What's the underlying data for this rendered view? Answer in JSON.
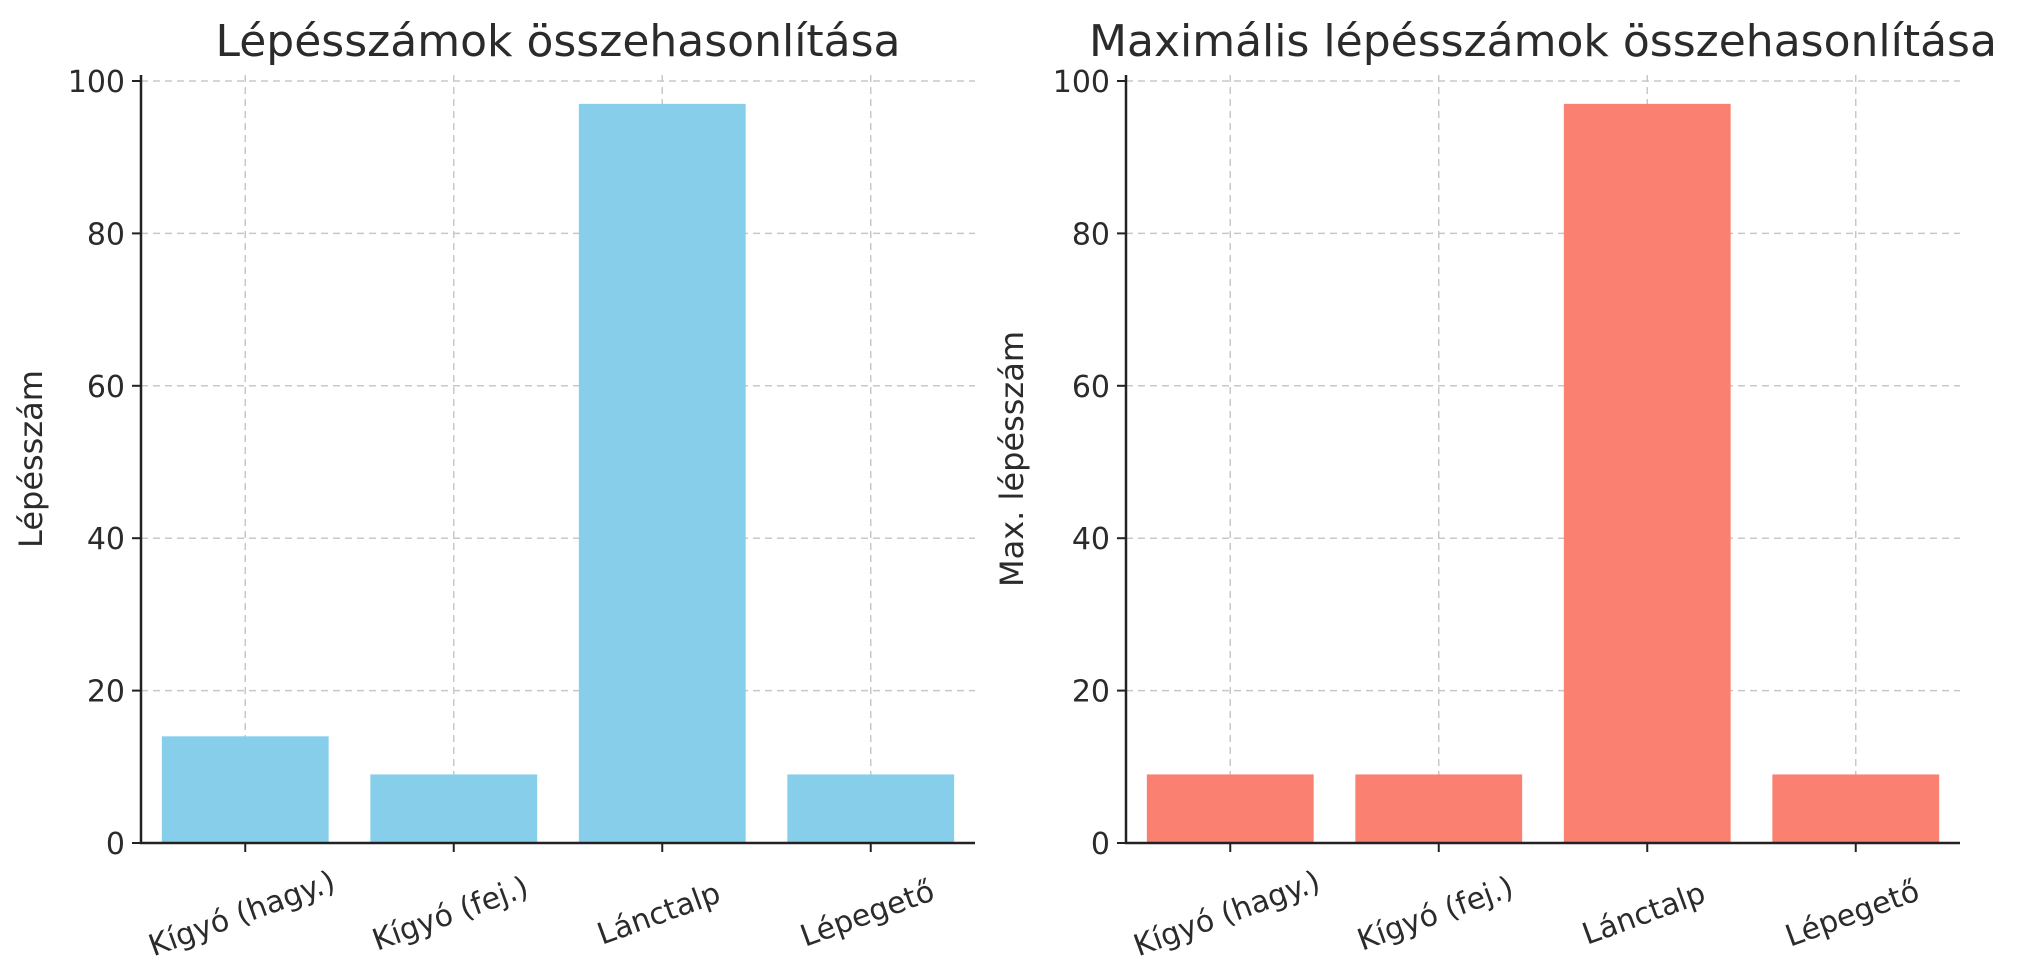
{
  "chart_data": [
    {
      "type": "bar",
      "title": "Lépésszámok összehasonlítása",
      "xlabel": "",
      "ylabel": "Lépésszám",
      "categories": [
        "Kígyó (hagy.)",
        "Kígyó (fej.)",
        "Lánctalp",
        "Lépegető"
      ],
      "values": [
        14,
        9,
        97,
        9
      ],
      "ylim": [
        0,
        100
      ],
      "yticks": [
        0,
        20,
        40,
        60,
        80,
        100
      ],
      "grid": true,
      "color": "#87CEEB"
    },
    {
      "type": "bar",
      "title": "Maximális lépésszámok összehasonlítása",
      "xlabel": "",
      "ylabel": "Max. lépésszám",
      "categories": [
        "Kígyó (hagy.)",
        "Kígyó (fej.)",
        "Lánctalp",
        "Lépegető"
      ],
      "values": [
        9,
        9,
        97,
        9
      ],
      "ylim": [
        0,
        100
      ],
      "yticks": [
        0,
        20,
        40,
        60,
        80,
        100
      ],
      "grid": true,
      "color": "#FA8072"
    }
  ]
}
